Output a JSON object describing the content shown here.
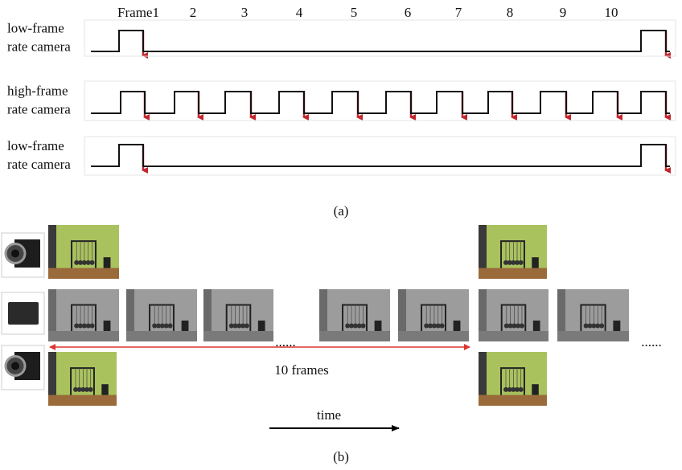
{
  "panel_a": {
    "frame_labels": [
      "Frame1",
      "2",
      "3",
      "4",
      "5",
      "6",
      "7",
      "8",
      "9",
      "10"
    ],
    "rows": [
      {
        "label_lines": [
          "low-frame",
          "rate camera"
        ]
      },
      {
        "label_lines": [
          "high-frame",
          "rate camera"
        ]
      },
      {
        "label_lines": [
          "low-frame",
          "rate camera"
        ]
      }
    ],
    "caption": "(a)"
  },
  "panel_b": {
    "ellipses": [
      "......",
      "......"
    ],
    "span_label": "10 frames",
    "time_label": "time",
    "caption": "(b)"
  }
}
